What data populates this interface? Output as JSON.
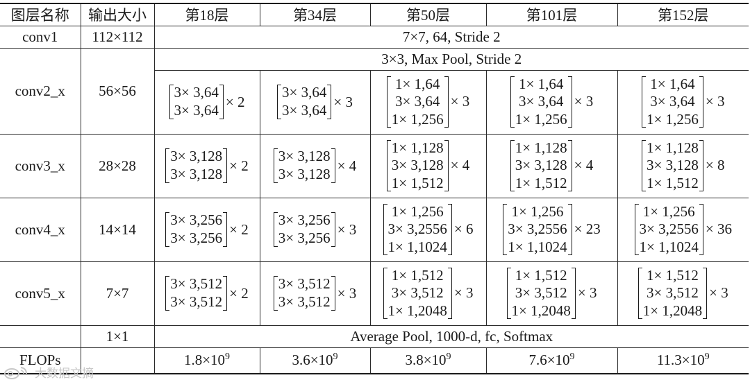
{
  "table": {
    "headers": [
      "图层名称",
      "输出大小",
      "第18层",
      "第34层",
      "第50层",
      "第101层",
      "第152层"
    ],
    "conv1": {
      "name": "conv1",
      "output": "112×112",
      "spec": "7×7, 64, Stride 2"
    },
    "conv2": {
      "name": "conv2_x",
      "output": "56×56",
      "pool": "3×3, Max Pool, Stride 2",
      "cells": [
        {
          "rows": [
            "3× 3,64",
            "3× 3,64"
          ],
          "mult": "× 2"
        },
        {
          "rows": [
            "3× 3,64",
            "3× 3,64"
          ],
          "mult": "× 3"
        },
        {
          "rows": [
            "1× 1,64",
            "3× 3,64",
            "1× 1,256"
          ],
          "mult": "× 3"
        },
        {
          "rows": [
            "1× 1,64",
            "3× 3,64",
            "1× 1,256"
          ],
          "mult": "× 3"
        },
        {
          "rows": [
            "1× 1,64",
            "3× 3,64",
            "1× 1,256"
          ],
          "mult": "× 3"
        }
      ]
    },
    "conv3": {
      "name": "conv3_x",
      "output": "28×28",
      "cells": [
        {
          "rows": [
            "3× 3,128",
            "3× 3,128"
          ],
          "mult": "× 2"
        },
        {
          "rows": [
            "3× 3,128",
            "3× 3,128"
          ],
          "mult": "× 4"
        },
        {
          "rows": [
            "1× 1,128",
            "3× 3,128",
            "1× 1,512"
          ],
          "mult": "× 4"
        },
        {
          "rows": [
            "1× 1,128",
            "3× 3,128",
            "1× 1,512"
          ],
          "mult": "× 4"
        },
        {
          "rows": [
            "1× 1,128",
            "3× 3,128",
            "1× 1,512"
          ],
          "mult": "× 8"
        }
      ]
    },
    "conv4": {
      "name": "conv4_x",
      "output": "14×14",
      "cells": [
        {
          "rows": [
            "3× 3,256",
            "3× 3,256"
          ],
          "mult": "× 2"
        },
        {
          "rows": [
            "3× 3,256",
            "3× 3,256"
          ],
          "mult": "× 3"
        },
        {
          "rows": [
            "1× 1,256",
            "3× 3,2556",
            "1× 1,1024"
          ],
          "mult": "× 6"
        },
        {
          "rows": [
            "1× 1,256",
            "3× 3,2556",
            "1× 1,1024"
          ],
          "mult": "× 23"
        },
        {
          "rows": [
            "1× 1,256",
            "3× 3,2556",
            "1× 1,1024"
          ],
          "mult": "× 36"
        }
      ]
    },
    "conv5": {
      "name": "conv5_x",
      "output": "7×7",
      "cells": [
        {
          "rows": [
            "3× 3,512",
            "3× 3,512"
          ],
          "mult": "× 2"
        },
        {
          "rows": [
            "3× 3,512",
            "3× 3,512"
          ],
          "mult": "× 3"
        },
        {
          "rows": [
            "1× 1,512",
            "3× 3,512",
            "1× 1,2048"
          ],
          "mult": "× 3"
        },
        {
          "rows": [
            "1× 1,512",
            "3× 3,512",
            "1× 1,2048"
          ],
          "mult": "× 3"
        },
        {
          "rows": [
            "1× 1,512",
            "3× 3,512",
            "1× 1,2048"
          ],
          "mult": "× 3"
        }
      ]
    },
    "avg": {
      "output": "1×1",
      "spec": "Average Pool, 1000-d, fc, Softmax"
    },
    "flops": {
      "name": "FLOPs",
      "values": [
        {
          "mant": "1.8×10",
          "exp": "9"
        },
        {
          "mant": "3.6×10",
          "exp": "9"
        },
        {
          "mant": "3.8×10",
          "exp": "9"
        },
        {
          "mant": "7.6×10",
          "exp": "9"
        },
        {
          "mant": "11.3×10",
          "exp": "9"
        }
      ]
    }
  },
  "watermark": {
    "text": "大数据文摘",
    "icon": "weibo-logo-icon",
    "color": "#c8c8c8"
  }
}
